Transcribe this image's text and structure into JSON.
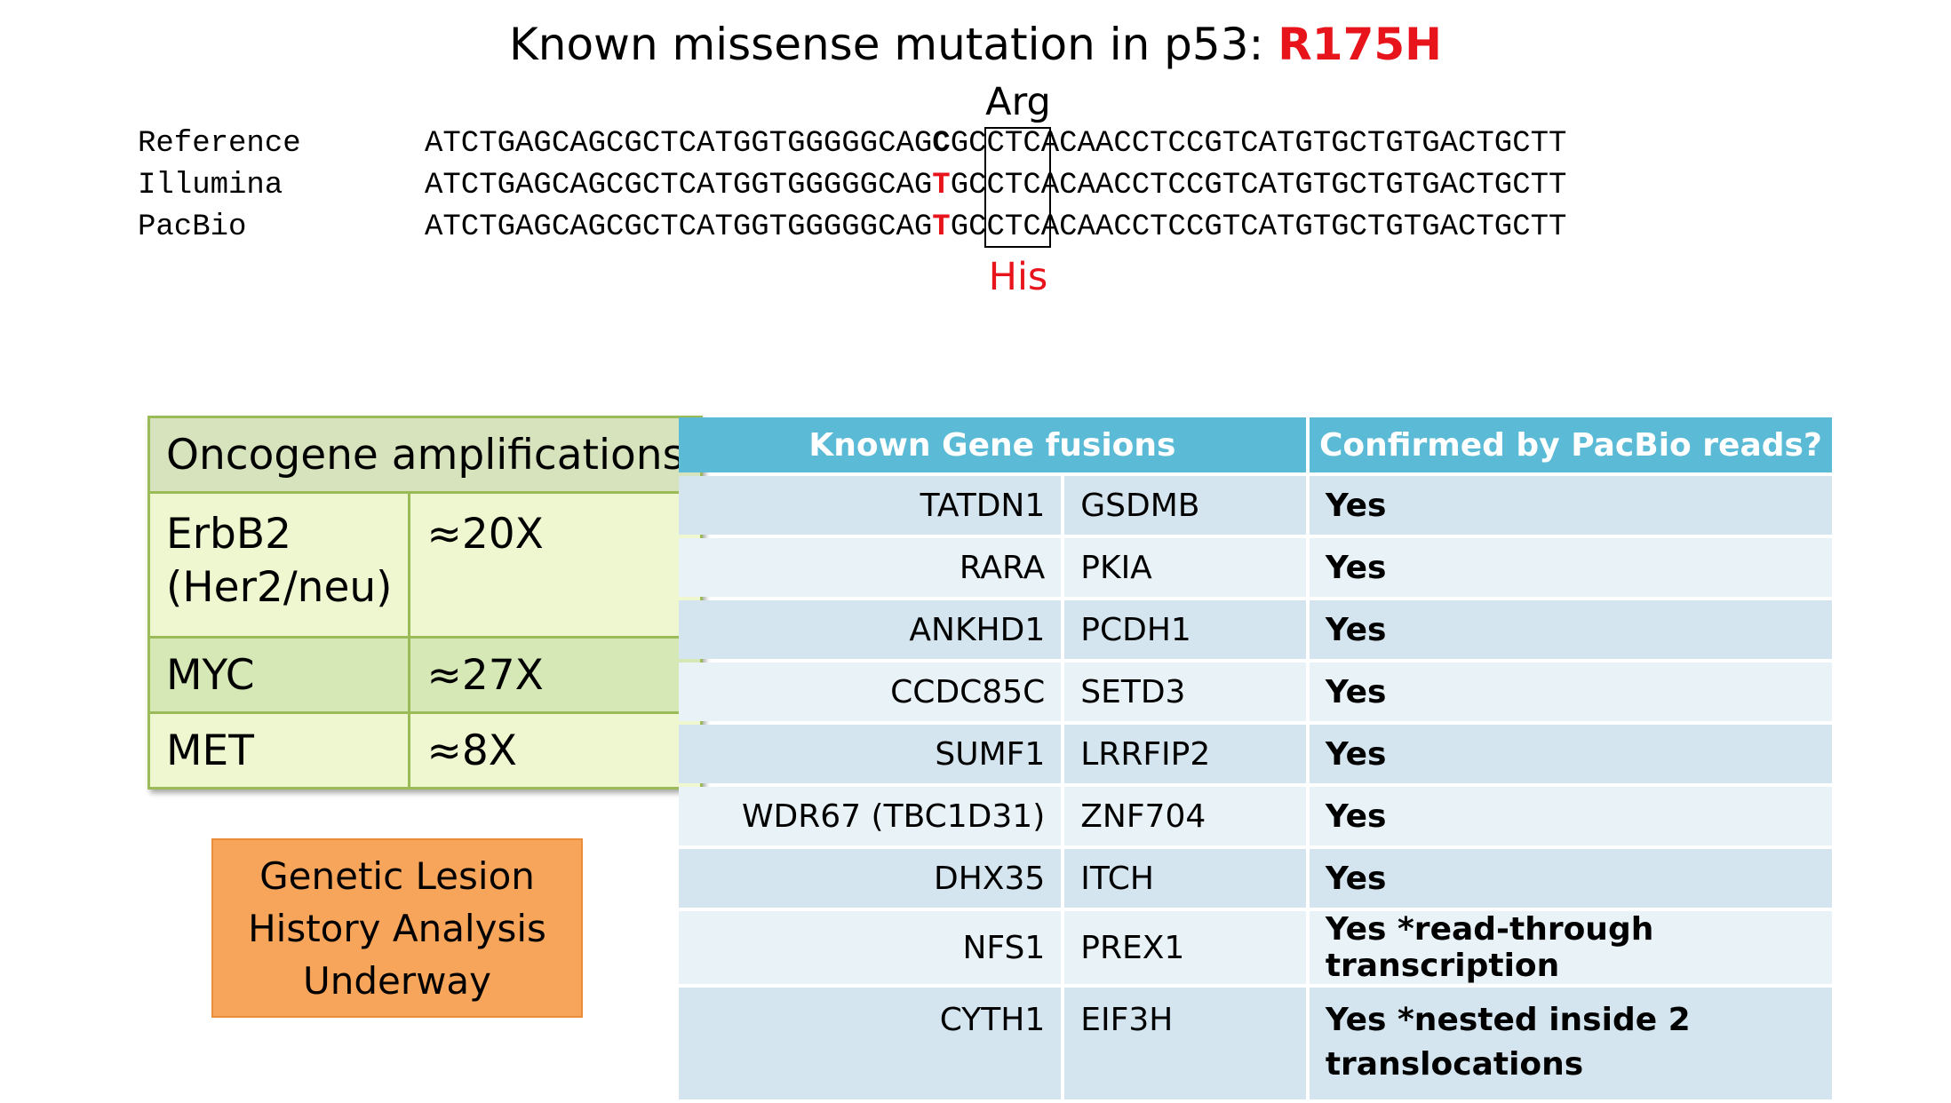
{
  "title": {
    "prefix": "Known missense mutation in p53: ",
    "mutation": "R175H",
    "mutation_color": "#e8141b"
  },
  "alignment": {
    "ref_aa": "Arg",
    "alt_aa": "His",
    "alt_color": "#e8141b",
    "rows": [
      {
        "label": "Reference",
        "pre": "ATCTGAGCAGCGCTCATGGTGGGGGCAG",
        "hl": "C",
        "post": "GCCTCACAACCTCCGTCATGTGCTGTGACTGCTT",
        "hl_color": "#000000"
      },
      {
        "label": "Illumina",
        "pre": "ATCTGAGCAGCGCTCATGGTGGGGGCAG",
        "hl": "T",
        "post": "GCCTCACAACCTCCGTCATGTGCTGTGACTGCTT",
        "hl_color": "#e8141b"
      },
      {
        "label": "PacBio",
        "pre": "ATCTGAGCAGCGCTCATGGTGGGGGCAG",
        "hl": "T",
        "post": "GCCTCACAACCTCCGTCATGTGCTGTGACTGCTT",
        "hl_color": "#e8141b"
      }
    ]
  },
  "oncogene": {
    "header": "Oncogene amplifications",
    "rows": [
      {
        "gene_line1": "ErbB2",
        "gene_line2": "(Her2/neu)",
        "fold": "≈20X"
      },
      {
        "gene_line1": "MYC",
        "gene_line2": "",
        "fold": "≈27X"
      },
      {
        "gene_line1": "MET",
        "gene_line2": "",
        "fold": "≈8X"
      }
    ]
  },
  "lesion_box": {
    "line1": "Genetic Lesion",
    "line2": "History Analysis",
    "line3": "Underway"
  },
  "fusions": {
    "header_genes": "Known Gene fusions",
    "header_confirmed": "Confirmed by PacBio reads?",
    "rows": [
      {
        "gene1": "TATDN1",
        "gene2": "GSDMB",
        "confirmed": "Yes",
        "confirmed_line2": ""
      },
      {
        "gene1": "RARA",
        "gene2": "PKIA",
        "confirmed": "Yes",
        "confirmed_line2": ""
      },
      {
        "gene1": "ANKHD1",
        "gene2": "PCDH1",
        "confirmed": "Yes",
        "confirmed_line2": ""
      },
      {
        "gene1": "CCDC85C",
        "gene2": "SETD3",
        "confirmed": "Yes",
        "confirmed_line2": ""
      },
      {
        "gene1": "SUMF1",
        "gene2": "LRRFIP2",
        "confirmed": "Yes",
        "confirmed_line2": ""
      },
      {
        "gene1": "WDR67 (TBC1D31)",
        "gene2": "ZNF704",
        "confirmed": "Yes",
        "confirmed_line2": ""
      },
      {
        "gene1": "DHX35",
        "gene2": "ITCH",
        "confirmed": "Yes",
        "confirmed_line2": ""
      },
      {
        "gene1": "NFS1",
        "gene2": "PREX1",
        "confirmed": "Yes *read-through transcription",
        "confirmed_line2": ""
      },
      {
        "gene1": "CYTH1",
        "gene2": "EIF3H",
        "confirmed": "Yes *nested inside 2",
        "confirmed_line2": "translocations"
      }
    ]
  }
}
